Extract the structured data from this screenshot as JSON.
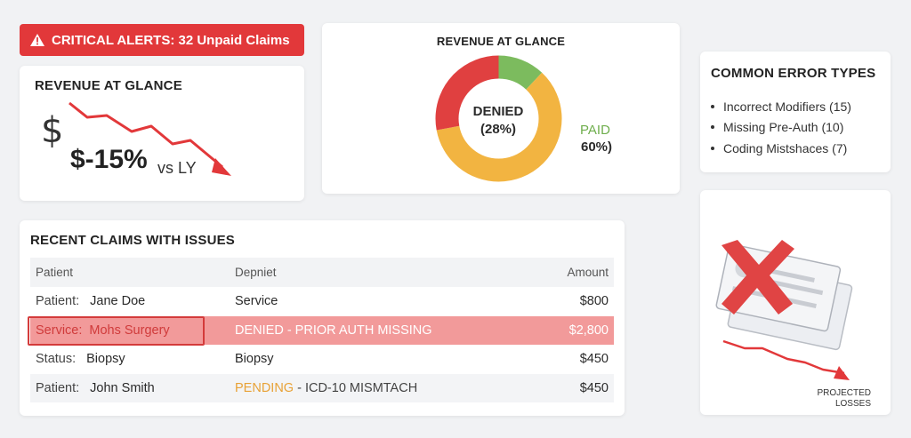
{
  "alert": {
    "icon": "warning-triangle-icon",
    "text": "CRITICAL ALERTS: 32 Unpaid Claims",
    "color": "#e2383a"
  },
  "revenue_left": {
    "title": "REVENUE AT GLANCE",
    "currency_symbol": "$",
    "change": "$-15%",
    "comparison": "vs LY",
    "trend_icon": "downward-trend-arrow-icon",
    "trend_color": "#e2383a"
  },
  "revenue_donut": {
    "title": "REVENUE AT GLANCE",
    "center_label": "DENIED",
    "center_value": "(28%)",
    "paid_label": "PAID",
    "paid_value": "60%)",
    "colors": {
      "denied": "#e04040",
      "paid": "#f2b441",
      "other": "#7cbb5e"
    }
  },
  "chart_data": {
    "type": "pie",
    "labels": [
      "DENIED",
      "PAID",
      ""
    ],
    "values": [
      28,
      60,
      12
    ],
    "title": "REVENUE AT GLANCE"
  },
  "errors": {
    "title": "COMMON ERROR TYPES",
    "items": [
      "Incorrect Modifiers (15)",
      "Missing Pre-Auth (10)",
      "Coding Mistshaces (7)"
    ]
  },
  "losses": {
    "icon": "denied-claim-form-icon",
    "trend_icon": "downward-trend-arrow-icon",
    "label_line1": "PROJECTED",
    "label_line2": "LOSSES"
  },
  "claims": {
    "title": "RECENT CLAIMS WITH ISSUES",
    "headers": {
      "patient": "Patient",
      "depniet": "Depniet",
      "amount": "Amount"
    },
    "rows": [
      {
        "key": "Patient:",
        "value": "Jane Doe",
        "col2": "Service",
        "amount": "$800"
      },
      {
        "key": "Service:",
        "value": "Mohs Surgery",
        "col2": "DENIED - PRIOR AUTH MISSING",
        "amount": "$2,800"
      },
      {
        "key": "Status:",
        "value": "Biopsy",
        "col2": "Biopsy",
        "amount": "$450"
      },
      {
        "key": "Patient:",
        "value": "John Smith",
        "col2_status": "PENDING",
        "col2_rest": " - ICD-10 MISMTACH",
        "amount": "$450"
      }
    ]
  }
}
